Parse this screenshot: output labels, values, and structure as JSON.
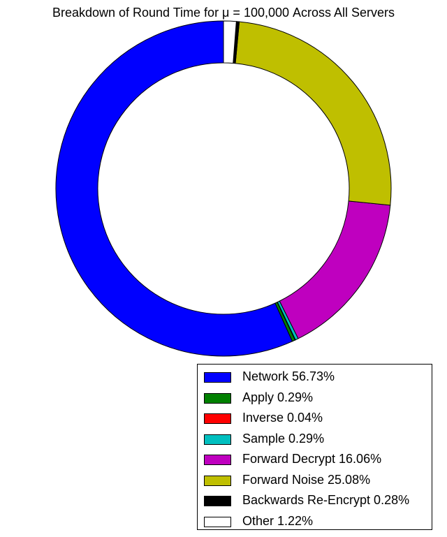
{
  "chart_data": {
    "type": "pie",
    "title": "Breakdown of Round Time for μ = 100,000 Across All Servers",
    "donut": true,
    "legend_position": "bottom-right",
    "slices": [
      {
        "label": "Network",
        "value": 56.73,
        "color": "#0000ff",
        "legend": "Network 56.73%"
      },
      {
        "label": "Apply",
        "value": 0.29,
        "color": "#008000",
        "legend": "Apply 0.29%"
      },
      {
        "label": "Inverse",
        "value": 0.04,
        "color": "#ff0000",
        "legend": "Inverse 0.04%"
      },
      {
        "label": "Sample",
        "value": 0.29,
        "color": "#00bfbf",
        "legend": "Sample 0.29%"
      },
      {
        "label": "Forward Decrypt",
        "value": 16.06,
        "color": "#bf00bf",
        "legend": "Forward Decrypt 16.06%"
      },
      {
        "label": "Forward Noise",
        "value": 25.08,
        "color": "#bfbf00",
        "legend": "Forward Noise 25.08%"
      },
      {
        "label": "Backwards Re-Encrypt",
        "value": 0.28,
        "color": "#000000",
        "legend": "Backwards Re-Encrypt 0.28%"
      },
      {
        "label": "Other",
        "value": 1.22,
        "color": "#ffffff",
        "legend": "Other 1.22%"
      }
    ]
  }
}
